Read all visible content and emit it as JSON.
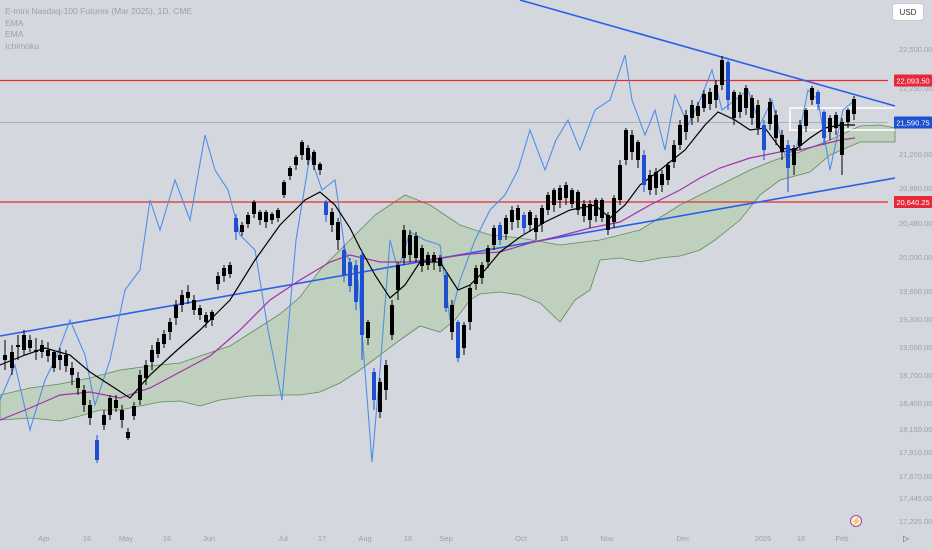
{
  "legend": {
    "symbol": "E-mini Nasdaq-100 Futures (Mar 2025), 1D, CME",
    "ema1": "EMA",
    "ema2": "EMA",
    "ichimoku": "Ichimoku"
  },
  "currency_button": "USD",
  "scroll_arrow": "▷",
  "colors": {
    "background": "#d5d7de",
    "candle": "#000000",
    "candle_highlight": "#1f4fd1",
    "ema_fast": "#000000",
    "ema_slow": "#a232a8",
    "ichimoku_line": "#4f8fe8",
    "cloud_fill": "#b7cdb4",
    "cloud_edge": "#5c8c5c",
    "trendline": "#2a5ee8",
    "level_line": "#e82a2a",
    "price_label_red": "#e6283a",
    "price_label_blue": "#1e4fd0"
  },
  "chart_data": {
    "type": "candlestick",
    "y_axis_ticks": [
      "22,500.00",
      "22,250.00",
      "21,200.00",
      "20,880.00",
      "20,480.00",
      "20,000.00",
      "19,600.00",
      "19,300.00",
      "19,000.00",
      "18,700.00",
      "18,400.00",
      "18,150.00",
      "17,910.00",
      "17,670.00",
      "17,445.00",
      "17,225.00"
    ],
    "x_axis_ticks": [
      "Apr",
      "16",
      "May",
      "16",
      "Jun",
      "Jul",
      "17",
      "Aug",
      "16",
      "Sep",
      "Oct",
      "16",
      "Nov",
      "Dec",
      "2025",
      "16",
      "Feb"
    ],
    "levels": [
      {
        "label": "22,093.50",
        "value": 22093.5,
        "style": "red"
      },
      {
        "label": "21,590.75",
        "value": 21590.75,
        "style": "blue"
      },
      {
        "label": "20,640.25",
        "value": 20640.25,
        "style": "red"
      }
    ],
    "trendlines": [
      "descending resistance",
      "ascending support"
    ],
    "rectangles": [
      "white range box near Feb"
    ],
    "indicators": [
      "EMA (fast, black)",
      "EMA (slow, purple)",
      "Ichimoku cloud"
    ],
    "grid": false
  }
}
